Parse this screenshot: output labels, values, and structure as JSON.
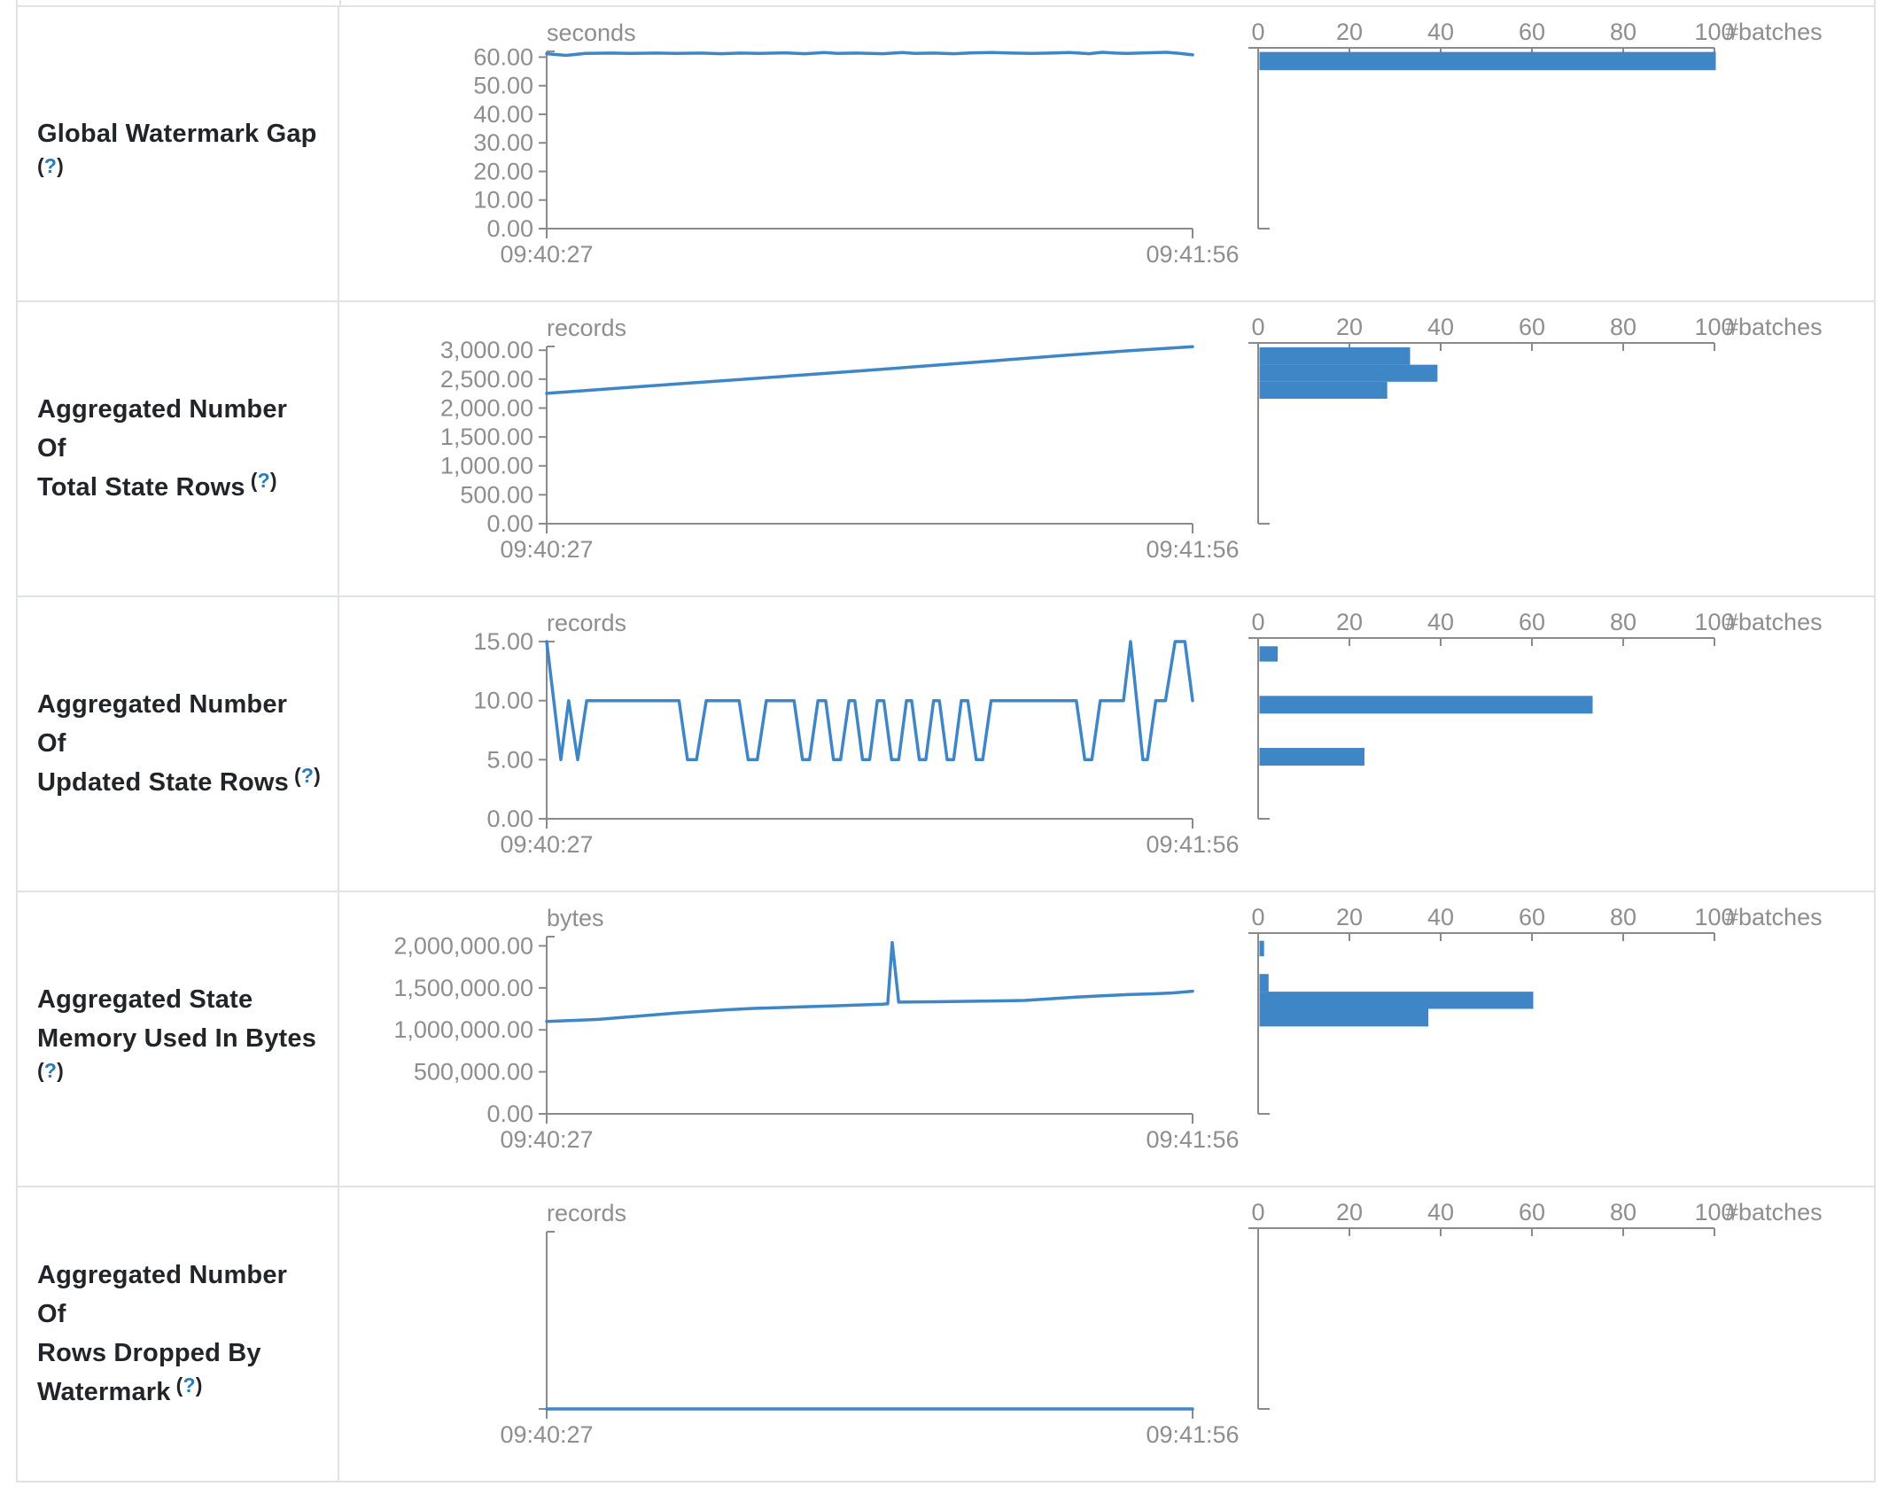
{
  "colors": {
    "accent_blue": "#3e86c6",
    "axis_gray": "#8a8a8a",
    "tick_text_gray": "#8e8e8e",
    "border_gray": "#dfe3e7",
    "title_text": "#212529",
    "help_blue": "#2b7bb9"
  },
  "rows": [
    {
      "title_lines": [
        "Global Watermark Gap"
      ],
      "help": "(?)",
      "help_own_line": true
    },
    {
      "title_lines": [
        "Aggregated Number Of",
        "Total State Rows"
      ],
      "help": "(?)",
      "help_own_line": false
    },
    {
      "title_lines": [
        "Aggregated Number Of",
        "Updated State Rows"
      ],
      "help": "(?)",
      "help_own_line": false
    },
    {
      "title_lines": [
        "Aggregated State",
        "Memory Used In Bytes"
      ],
      "help": "(?)",
      "help_own_line": true
    },
    {
      "title_lines": [
        "Aggregated Number Of",
        "Rows Dropped By",
        "Watermark"
      ],
      "help": "(?)",
      "help_own_line": false
    }
  ],
  "chart_data": [
    {
      "type": "line",
      "title": "Global Watermark Gap",
      "unit": "seconds",
      "x_start_label": "09:40:27",
      "x_end_label": "09:41:56",
      "y_max": 62,
      "y_ticks": [
        {
          "v": 0,
          "label": "0.00"
        },
        {
          "v": 10,
          "label": "10.00"
        },
        {
          "v": 20,
          "label": "20.00"
        },
        {
          "v": 30,
          "label": "30.00"
        },
        {
          "v": 40,
          "label": "40.00"
        },
        {
          "v": 50,
          "label": "50.00"
        },
        {
          "v": 60,
          "label": "60.00"
        }
      ],
      "timeline": [
        [
          0,
          61.2
        ],
        [
          0.03,
          60.6
        ],
        [
          0.06,
          61.3
        ],
        [
          0.1,
          61.4
        ],
        [
          0.13,
          61.3
        ],
        [
          0.17,
          61.4
        ],
        [
          0.2,
          61.3
        ],
        [
          0.24,
          61.4
        ],
        [
          0.27,
          61.2
        ],
        [
          0.3,
          61.4
        ],
        [
          0.33,
          61.3
        ],
        [
          0.37,
          61.5
        ],
        [
          0.4,
          61.2
        ],
        [
          0.43,
          61.6
        ],
        [
          0.45,
          61.3
        ],
        [
          0.48,
          61.4
        ],
        [
          0.52,
          61.2
        ],
        [
          0.55,
          61.6
        ],
        [
          0.57,
          61.3
        ],
        [
          0.6,
          61.4
        ],
        [
          0.63,
          61.2
        ],
        [
          0.66,
          61.5
        ],
        [
          0.69,
          61.6
        ],
        [
          0.72,
          61.4
        ],
        [
          0.75,
          61.3
        ],
        [
          0.78,
          61.4
        ],
        [
          0.81,
          61.6
        ],
        [
          0.84,
          61.2
        ],
        [
          0.86,
          61.7
        ],
        [
          0.88,
          61.4
        ],
        [
          0.9,
          61.3
        ],
        [
          0.93,
          61.5
        ],
        [
          0.96,
          61.7
        ],
        [
          0.98,
          61.3
        ],
        [
          1,
          60.8
        ]
      ],
      "histogram": {
        "axis_label": "#batches",
        "ticks": [
          {
            "v": 0,
            "label": "0"
          },
          {
            "v": 20,
            "label": "20"
          },
          {
            "v": 40,
            "label": "40"
          },
          {
            "v": 60,
            "label": "60"
          },
          {
            "v": 80,
            "label": "80"
          },
          {
            "v": 100,
            "label": "100"
          }
        ],
        "bars": [
          {
            "value_hi": 61.8,
            "value_lo": 55.4,
            "count": 100
          }
        ]
      }
    },
    {
      "type": "line",
      "title": "Aggregated Number Of Total State Rows",
      "unit": "records",
      "x_start_label": "09:40:27",
      "x_end_label": "09:41:56",
      "y_max": 3065,
      "y_ticks": [
        {
          "v": 0,
          "label": "0.00"
        },
        {
          "v": 500,
          "label": "500.00"
        },
        {
          "v": 1000,
          "label": "1,000.00"
        },
        {
          "v": 1500,
          "label": "1,500.00"
        },
        {
          "v": 2000,
          "label": "2,000.00"
        },
        {
          "v": 2500,
          "label": "2,500.00"
        },
        {
          "v": 3000,
          "label": "3,000.00"
        }
      ],
      "timeline": [
        [
          0,
          2255
        ],
        [
          0.1,
          2335
        ],
        [
          0.2,
          2415
        ],
        [
          0.3,
          2495
        ],
        [
          0.4,
          2575
        ],
        [
          0.5,
          2655
        ],
        [
          0.6,
          2740
        ],
        [
          0.7,
          2825
        ],
        [
          0.8,
          2910
        ],
        [
          0.9,
          2990
        ],
        [
          1,
          3062
        ]
      ],
      "histogram": {
        "axis_label": "#batches",
        "ticks": [
          {
            "v": 0,
            "label": "0"
          },
          {
            "v": 20,
            "label": "20"
          },
          {
            "v": 40,
            "label": "40"
          },
          {
            "v": 60,
            "label": "60"
          },
          {
            "v": 80,
            "label": "80"
          },
          {
            "v": 100,
            "label": "100"
          }
        ],
        "bars": [
          {
            "value_hi": 3050,
            "value_lo": 2750,
            "count": 33
          },
          {
            "value_hi": 2750,
            "value_lo": 2455,
            "count": 39
          },
          {
            "value_hi": 2455,
            "value_lo": 2160,
            "count": 28
          }
        ]
      }
    },
    {
      "type": "line",
      "title": "Aggregated Number Of Updated State Rows",
      "unit": "records",
      "x_start_label": "09:40:27",
      "x_end_label": "09:41:56",
      "y_max": 15,
      "y_ticks": [
        {
          "v": 0,
          "label": "0.00"
        },
        {
          "v": 5,
          "label": "5.00"
        },
        {
          "v": 10,
          "label": "10.00"
        },
        {
          "v": 15,
          "label": "15.00"
        }
      ],
      "timeline": [
        [
          0,
          15
        ],
        [
          0.022,
          5
        ],
        [
          0.034,
          10
        ],
        [
          0.048,
          5
        ],
        [
          0.062,
          10
        ],
        [
          0.205,
          10
        ],
        [
          0.218,
          5
        ],
        [
          0.232,
          5
        ],
        [
          0.247,
          10
        ],
        [
          0.298,
          10
        ],
        [
          0.312,
          5
        ],
        [
          0.326,
          5
        ],
        [
          0.34,
          10
        ],
        [
          0.383,
          10
        ],
        [
          0.396,
          5
        ],
        [
          0.407,
          5
        ],
        [
          0.42,
          10
        ],
        [
          0.432,
          10
        ],
        [
          0.444,
          5
        ],
        [
          0.455,
          5
        ],
        [
          0.468,
          10
        ],
        [
          0.477,
          10
        ],
        [
          0.489,
          5
        ],
        [
          0.5,
          5
        ],
        [
          0.512,
          10
        ],
        [
          0.522,
          10
        ],
        [
          0.534,
          5
        ],
        [
          0.545,
          5
        ],
        [
          0.557,
          10
        ],
        [
          0.565,
          10
        ],
        [
          0.577,
          5
        ],
        [
          0.587,
          5
        ],
        [
          0.599,
          10
        ],
        [
          0.608,
          10
        ],
        [
          0.62,
          5
        ],
        [
          0.63,
          5
        ],
        [
          0.642,
          10
        ],
        [
          0.652,
          10
        ],
        [
          0.665,
          5
        ],
        [
          0.675,
          5
        ],
        [
          0.688,
          10
        ],
        [
          0.82,
          10
        ],
        [
          0.833,
          5
        ],
        [
          0.844,
          5
        ],
        [
          0.857,
          10
        ],
        [
          0.893,
          10
        ],
        [
          0.904,
          15
        ],
        [
          0.923,
          5
        ],
        [
          0.93,
          5
        ],
        [
          0.943,
          10
        ],
        [
          0.958,
          10
        ],
        [
          0.973,
          15
        ],
        [
          0.988,
          15
        ],
        [
          1,
          10
        ]
      ],
      "histogram": {
        "axis_label": "#batches",
        "ticks": [
          {
            "v": 0,
            "label": "0"
          },
          {
            "v": 20,
            "label": "20"
          },
          {
            "v": 40,
            "label": "40"
          },
          {
            "v": 60,
            "label": "60"
          },
          {
            "v": 80,
            "label": "80"
          },
          {
            "v": 100,
            "label": "100"
          }
        ],
        "bars": [
          {
            "value_hi": 14.6,
            "value_lo": 13.3,
            "count": 4
          },
          {
            "value_hi": 10.4,
            "value_lo": 8.9,
            "count": 73
          },
          {
            "value_hi": 6.0,
            "value_lo": 4.5,
            "count": 23
          }
        ]
      }
    },
    {
      "type": "line",
      "title": "Aggregated State Memory Used In Bytes",
      "unit": "bytes",
      "x_start_label": "09:40:27",
      "x_end_label": "09:41:56",
      "y_max": 2110000,
      "y_ticks": [
        {
          "v": 0,
          "label": "0.00"
        },
        {
          "v": 500000,
          "label": "500,000.00"
        },
        {
          "v": 1000000,
          "label": "1,000,000.00"
        },
        {
          "v": 1500000,
          "label": "1,500,000.00"
        },
        {
          "v": 2000000,
          "label": "2,000,000.00"
        }
      ],
      "timeline": [
        [
          0,
          1100000
        ],
        [
          0.04,
          1112000
        ],
        [
          0.08,
          1125000
        ],
        [
          0.12,
          1150000
        ],
        [
          0.16,
          1175000
        ],
        [
          0.2,
          1200000
        ],
        [
          0.24,
          1220000
        ],
        [
          0.28,
          1240000
        ],
        [
          0.32,
          1255000
        ],
        [
          0.36,
          1265000
        ],
        [
          0.4,
          1275000
        ],
        [
          0.44,
          1285000
        ],
        [
          0.48,
          1295000
        ],
        [
          0.52,
          1305000
        ],
        [
          0.528,
          1310000
        ],
        [
          0.535,
          2040000
        ],
        [
          0.545,
          1330000
        ],
        [
          0.6,
          1335000
        ],
        [
          0.65,
          1340000
        ],
        [
          0.7,
          1345000
        ],
        [
          0.74,
          1350000
        ],
        [
          0.78,
          1370000
        ],
        [
          0.82,
          1390000
        ],
        [
          0.86,
          1405000
        ],
        [
          0.9,
          1420000
        ],
        [
          0.94,
          1430000
        ],
        [
          0.97,
          1440000
        ],
        [
          1,
          1460000
        ]
      ],
      "histogram": {
        "axis_label": "#batches",
        "ticks": [
          {
            "v": 0,
            "label": "0"
          },
          {
            "v": 20,
            "label": "20"
          },
          {
            "v": 40,
            "label": "40"
          },
          {
            "v": 60,
            "label": "60"
          },
          {
            "v": 80,
            "label": "80"
          },
          {
            "v": 100,
            "label": "100"
          }
        ],
        "bars": [
          {
            "value_hi": 2060000,
            "value_lo": 1875000,
            "count": 1
          },
          {
            "value_hi": 1665000,
            "value_lo": 1455000,
            "count": 2
          },
          {
            "value_hi": 1455000,
            "value_lo": 1250000,
            "count": 60
          },
          {
            "value_hi": 1250000,
            "value_lo": 1040000,
            "count": 37
          }
        ]
      }
    },
    {
      "type": "line",
      "title": "Aggregated Number Of Rows Dropped By Watermark",
      "unit": "records",
      "x_start_label": "09:40:27",
      "x_end_label": "09:41:56",
      "y_max": 1,
      "y_ticks": [],
      "timeline": [
        [
          0,
          0
        ],
        [
          1,
          0
        ]
      ],
      "histogram": {
        "axis_label": "#batches",
        "ticks": [
          {
            "v": 0,
            "label": "0"
          },
          {
            "v": 20,
            "label": "20"
          },
          {
            "v": 40,
            "label": "40"
          },
          {
            "v": 60,
            "label": "60"
          },
          {
            "v": 80,
            "label": "80"
          },
          {
            "v": 100,
            "label": "100"
          }
        ],
        "bars": []
      }
    }
  ]
}
